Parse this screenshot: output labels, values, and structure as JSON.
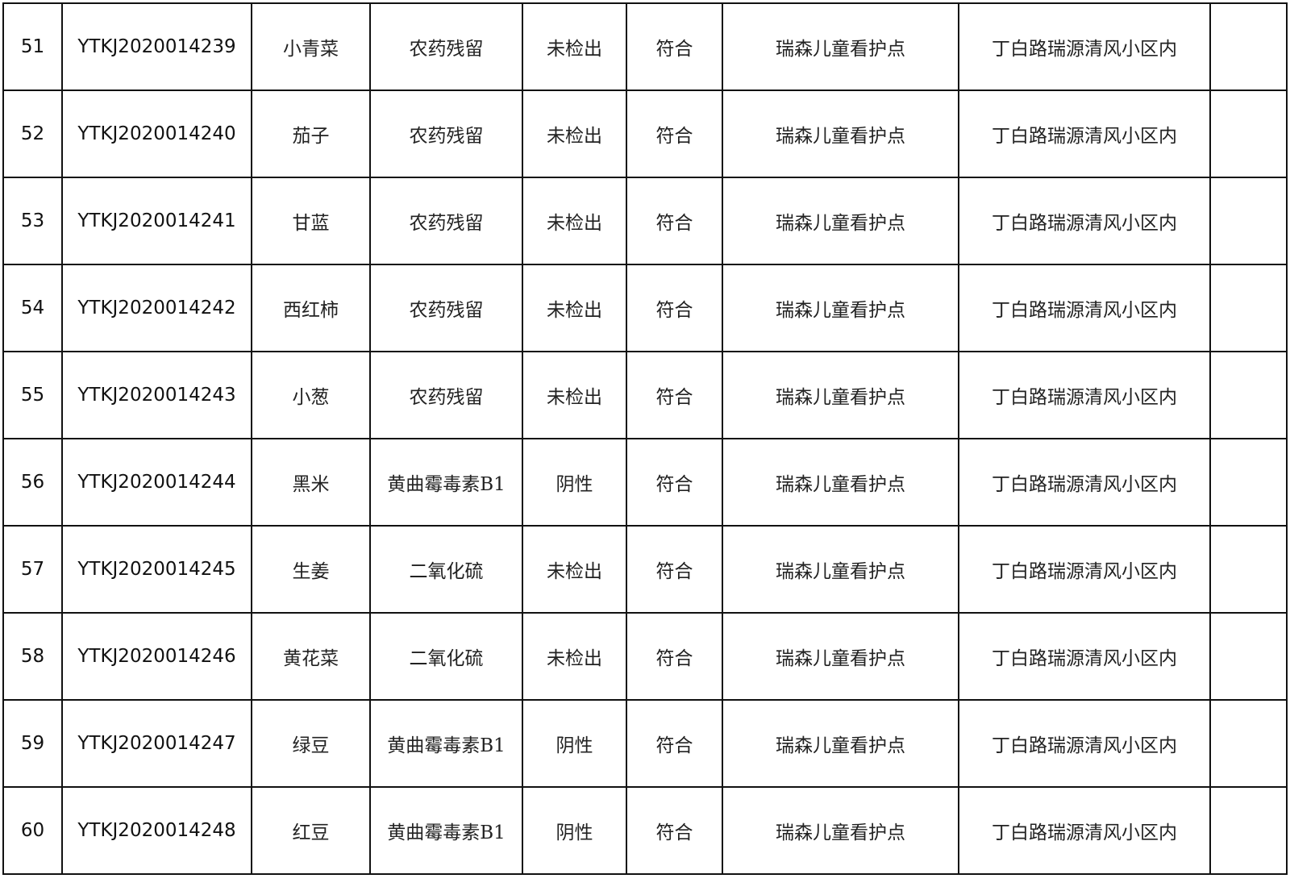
{
  "table": {
    "rows": [
      [
        "51",
        "YTKJ2020014239",
        "小青菜",
        "农药残留",
        "未检出",
        "符合",
        "瑞森儿童看护点",
        "丁白路瑞源清风小区内",
        ""
      ],
      [
        "52",
        "YTKJ2020014240",
        "茄子",
        "农药残留",
        "未检出",
        "符合",
        "瑞森儿童看护点",
        "丁白路瑞源清风小区内",
        ""
      ],
      [
        "53",
        "YTKJ2020014241",
        "甘蓝",
        "农药残留",
        "未检出",
        "符合",
        "瑞森儿童看护点",
        "丁白路瑞源清风小区内",
        ""
      ],
      [
        "54",
        "YTKJ2020014242",
        "西红柿",
        "农药残留",
        "未检出",
        "符合",
        "瑞森儿童看护点",
        "丁白路瑞源清风小区内",
        ""
      ],
      [
        "55",
        "YTKJ2020014243",
        "小葱",
        "农药残留",
        "未检出",
        "符合",
        "瑞森儿童看护点",
        "丁白路瑞源清风小区内",
        ""
      ],
      [
        "56",
        "YTKJ2020014244",
        "黑米",
        "黄曲霉毒素B1",
        "阴性",
        "符合",
        "瑞森儿童看护点",
        "丁白路瑞源清风小区内",
        ""
      ],
      [
        "57",
        "YTKJ2020014245",
        "生姜",
        "二氧化硫",
        "未检出",
        "符合",
        "瑞森儿童看护点",
        "丁白路瑞源清风小区内",
        ""
      ],
      [
        "58",
        "YTKJ2020014246",
        "黄花菜",
        "二氧化硫",
        "未检出",
        "符合",
        "瑞森儿童看护点",
        "丁白路瑞源清风小区内",
        ""
      ],
      [
        "59",
        "YTKJ2020014247",
        "绿豆",
        "黄曲霉毒素B1",
        "阴性",
        "符合",
        "瑞森儿童看护点",
        "丁白路瑞源清风小区内",
        ""
      ],
      [
        "60",
        "YTKJ2020014248",
        "红豆",
        "黄曲霉毒素B1",
        "阴性",
        "符合",
        "瑞森儿童看护点",
        "丁白路瑞源清风小区内",
        ""
      ]
    ]
  }
}
